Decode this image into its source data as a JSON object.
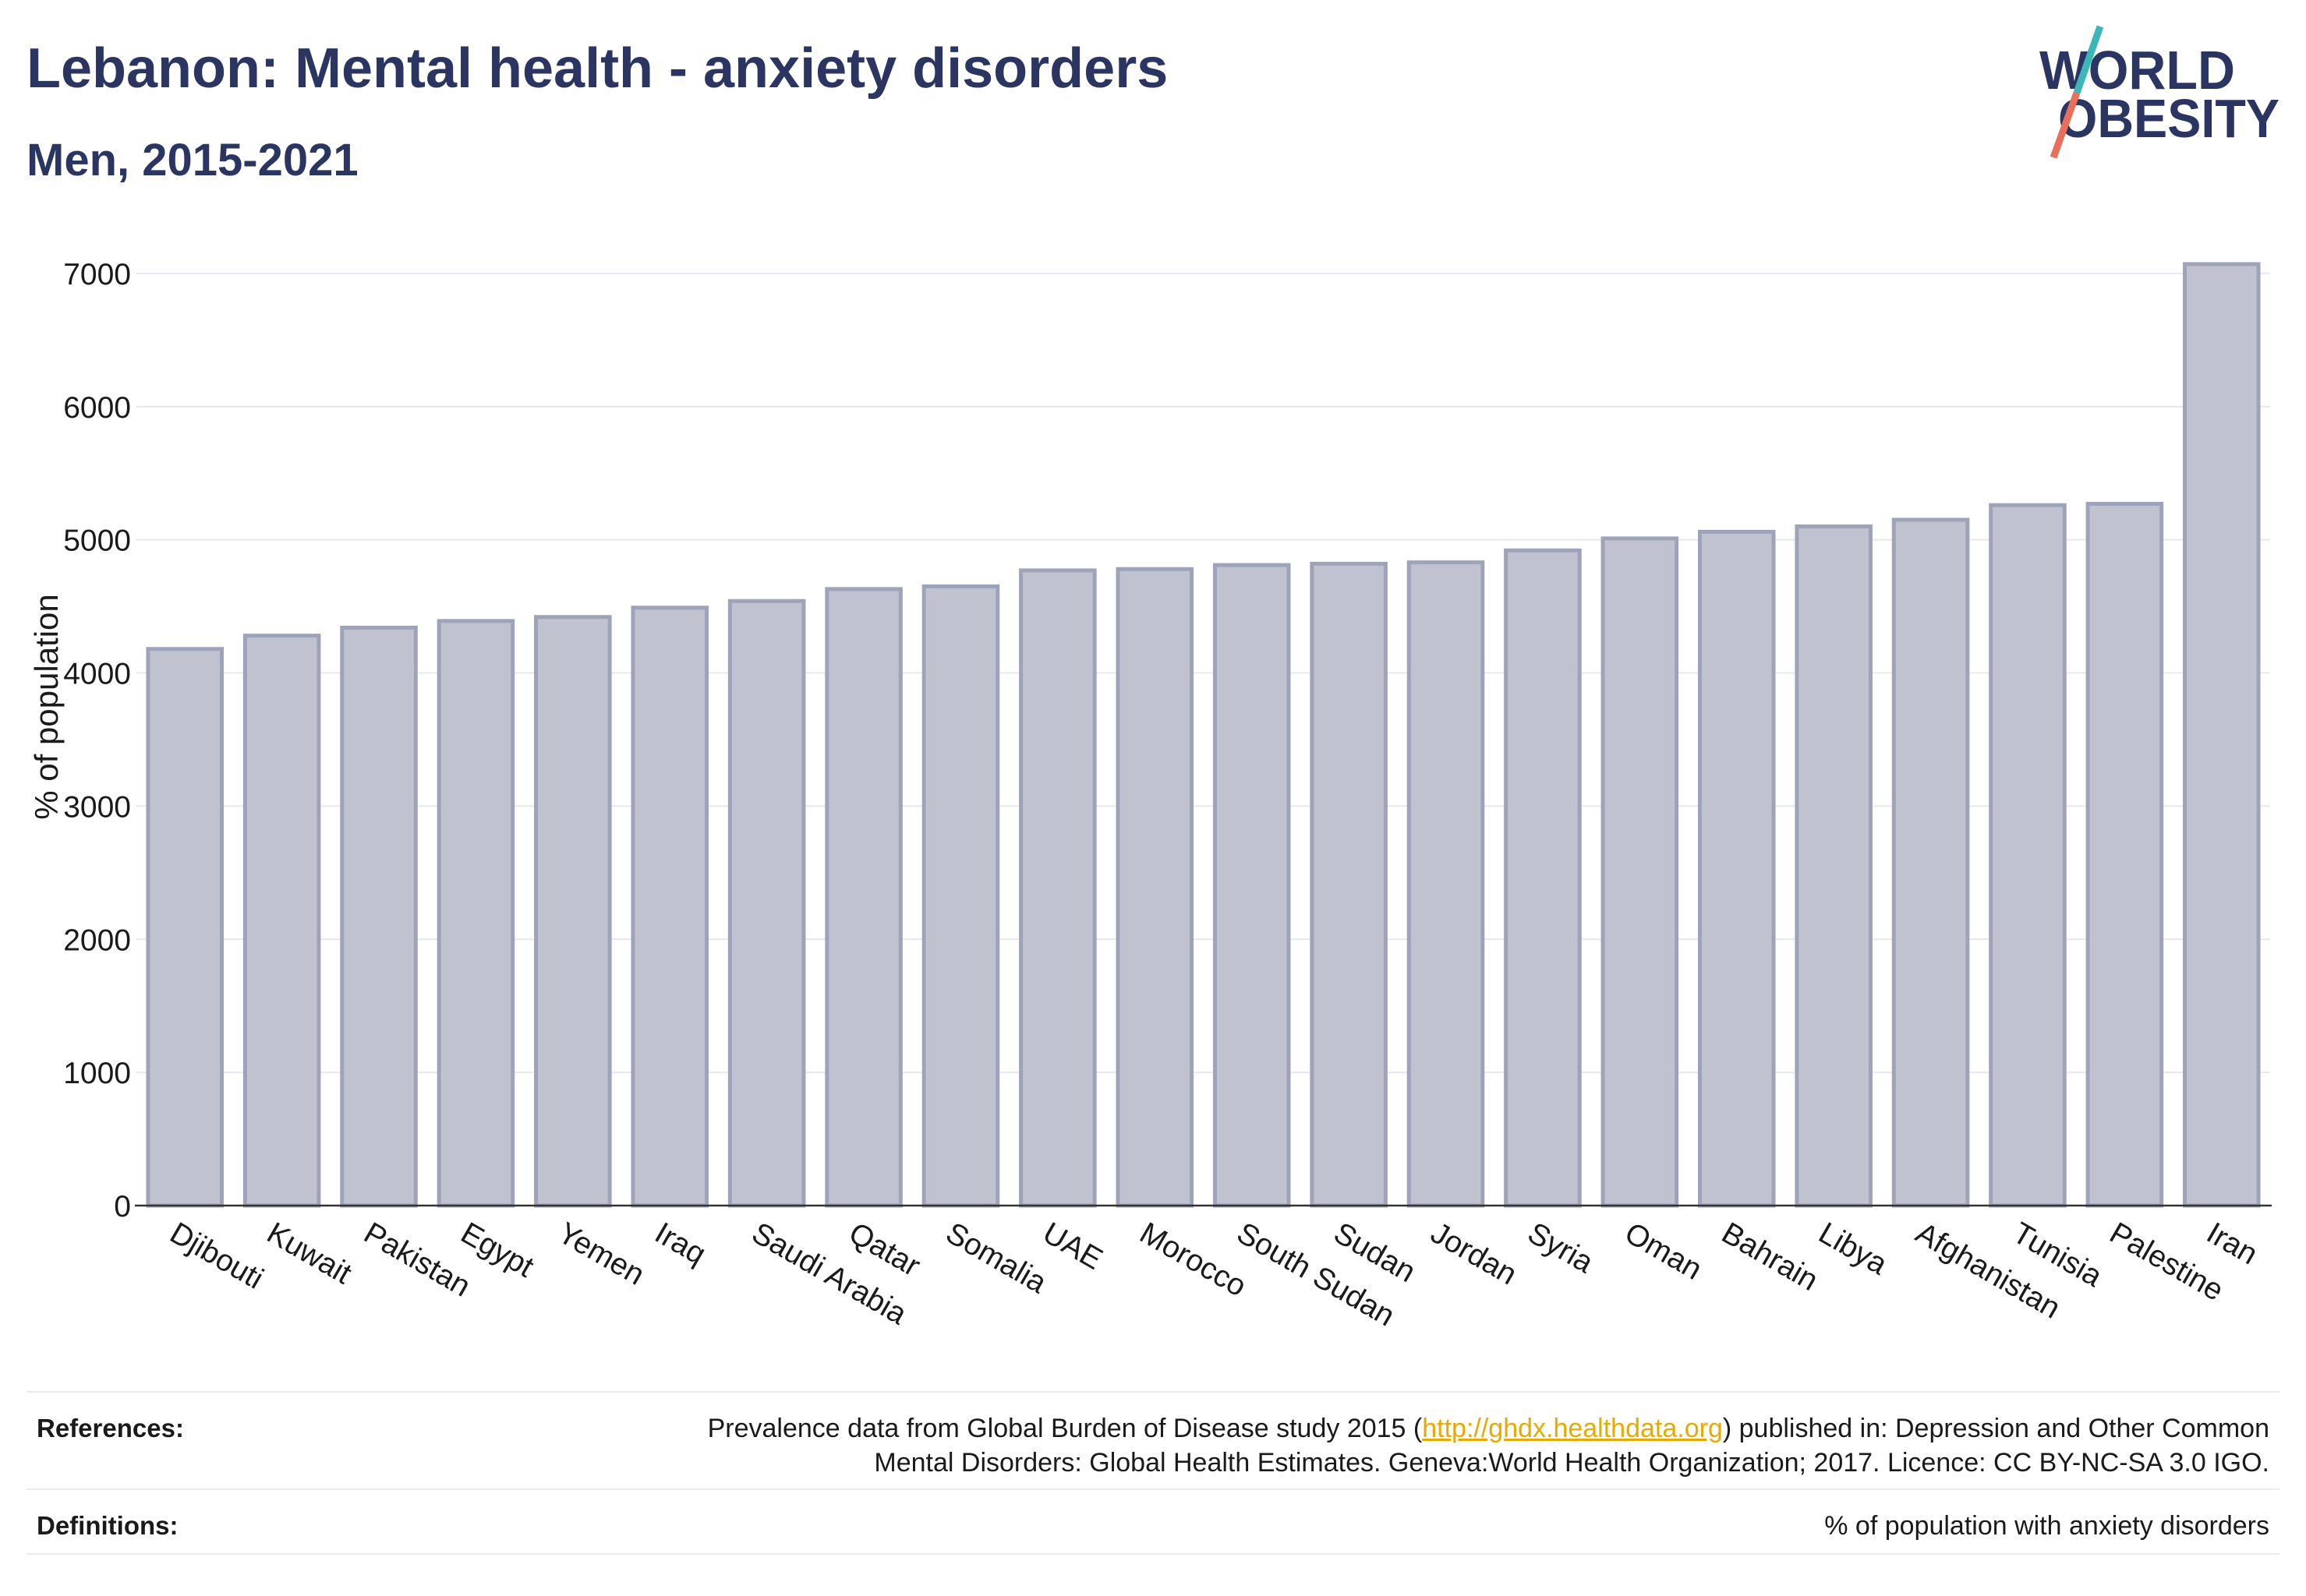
{
  "logo": {
    "line1": "WORLD",
    "line2": "OBESITY"
  },
  "colors": {
    "title": "#2b3561",
    "bar_fill": "#c0c3cf",
    "bar_stroke": "#9ea3b9",
    "gridline": "#e7e8ee",
    "axis": "#333333",
    "link": "#e8a900",
    "logo_teal": "#3bb7b8",
    "logo_salmon": "#e8705a"
  },
  "chart_data": {
    "type": "bar",
    "title": "Lebanon: Mental health - anxiety disorders",
    "subtitle": "Men, 2015-2021",
    "ylabel": "% of population",
    "categories": [
      "Djibouti",
      "Kuwait",
      "Pakistan",
      "Egypt",
      "Yemen",
      "Iraq",
      "Saudi Arabia",
      "Qatar",
      "Somalia",
      "UAE",
      "Morocco",
      "South Sudan",
      "Sudan",
      "Jordan",
      "Syria",
      "Oman",
      "Bahrain",
      "Libya",
      "Afghanistan",
      "Tunisia",
      "Palestine",
      "Iran"
    ],
    "values": [
      4180,
      4280,
      4340,
      4390,
      4420,
      4490,
      4540,
      4630,
      4650,
      4770,
      4780,
      4810,
      4820,
      4830,
      4920,
      5010,
      5060,
      5100,
      5150,
      5260,
      5270,
      7070
    ],
    "yticks": [
      0,
      1000,
      2000,
      3000,
      4000,
      5000,
      6000,
      7000
    ],
    "ylim": [
      0,
      7450
    ],
    "grid": true
  },
  "footer": {
    "references_label": "References:",
    "references_text_1": "Prevalence data from Global Burden of Disease study 2015 (",
    "references_link": "http://ghdx.healthdata.org",
    "references_text_2": ") published in: Depression and Other Common",
    "references_line_2": "Mental Disorders: Global Health Estimates. Geneva:World Health Organization; 2017. Licence: CC BY-NC-SA 3.0 IGO.",
    "definitions_label": "Definitions:",
    "definitions_text": "% of population with anxiety disorders"
  }
}
